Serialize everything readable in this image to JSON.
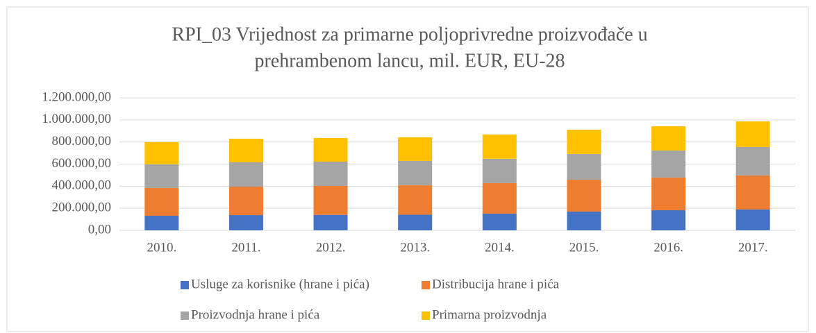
{
  "chart_data": {
    "type": "stacked_bar",
    "title": [
      "RPI_03 Vrijednost za primarne poljoprivredne proizvođače u",
      "prehrambenom lancu, mil. EUR, EU-28"
    ],
    "categories": [
      "2010.",
      "2011.",
      "2012.",
      "2013.",
      "2014.",
      "2015.",
      "2016.",
      "2017."
    ],
    "series": [
      {
        "name": "Usluge za korisnike (hrane i pića)",
        "color": "#4472c4",
        "values": [
          132000,
          138000,
          140000,
          141000,
          151000,
          170000,
          182000,
          189000
        ]
      },
      {
        "name": "Distribucija hrane i pića",
        "color": "#ed7d31",
        "values": [
          252000,
          258000,
          262000,
          267000,
          277000,
          289000,
          296000,
          308000
        ]
      },
      {
        "name": "Proizvodnja hrane i pića",
        "color": "#a5a5a5",
        "values": [
          213000,
          220000,
          220000,
          221000,
          220000,
          233000,
          245000,
          258000
        ]
      },
      {
        "name": "Primarna proizvodnja",
        "color": "#ffc000",
        "values": [
          202000,
          214000,
          214000,
          214000,
          220000,
          220000,
          220000,
          232000
        ]
      }
    ],
    "ylim": [
      0,
      1200000
    ],
    "yticks": [
      {
        "value": 0,
        "label": "0,00"
      },
      {
        "value": 200000,
        "label": "200.000,00"
      },
      {
        "value": 400000,
        "label": "400.000,00"
      },
      {
        "value": 600000,
        "label": "600.000,00"
      },
      {
        "value": 800000,
        "label": "800.000,00"
      },
      {
        "value": 1000000,
        "label": "1.000.000,00"
      },
      {
        "value": 1200000,
        "label": "1.200.000,00"
      }
    ],
    "grid": true,
    "legend": "bottom"
  }
}
